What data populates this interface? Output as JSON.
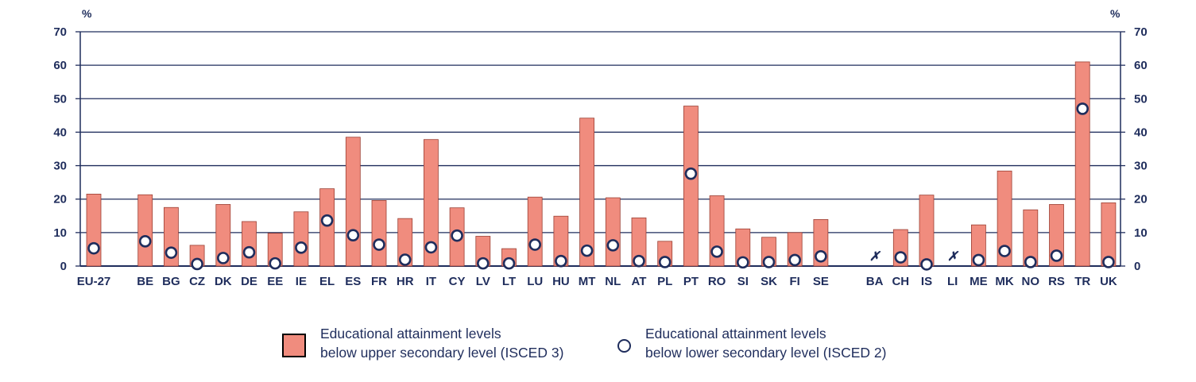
{
  "chart_data": {
    "type": "bar",
    "unit_left": "%",
    "unit_right": "%",
    "ylim": [
      0,
      70
    ],
    "yticks": [
      0,
      10,
      20,
      30,
      40,
      50,
      60,
      70
    ],
    "categories": [
      "EU-27",
      "BE",
      "BG",
      "CZ",
      "DK",
      "DE",
      "EE",
      "IE",
      "EL",
      "ES",
      "FR",
      "HR",
      "IT",
      "CY",
      "LV",
      "LT",
      "LU",
      "HU",
      "MT",
      "NL",
      "AT",
      "PL",
      "PT",
      "RO",
      "SI",
      "SK",
      "FI",
      "SE",
      "BA",
      "CH",
      "IS",
      "LI",
      "ME",
      "MK",
      "NO",
      "RS",
      "TR",
      "UK"
    ],
    "series": [
      {
        "name_lines": [
          "Educational attainment levels",
          "below upper secondary level (ISCED 3)"
        ],
        "color": "#f08c7e",
        "values": [
          21.5,
          21.3,
          17.5,
          6.2,
          18.4,
          13.3,
          9.8,
          16.2,
          23.1,
          38.5,
          19.6,
          14.2,
          37.8,
          17.4,
          8.9,
          5.2,
          20.6,
          14.9,
          44.2,
          20.4,
          14.4,
          7.4,
          47.8,
          21.0,
          11.1,
          8.6,
          10.0,
          13.9,
          null,
          10.9,
          21.2,
          null,
          12.3,
          28.4,
          16.8,
          18.4,
          61.0,
          18.9
        ]
      },
      {
        "name_lines": [
          "Educational attainment levels",
          "below lower secondary level (ISCED 2)"
        ],
        "color": "#1f2d5c",
        "values": [
          5.3,
          7.4,
          4.0,
          0.6,
          2.4,
          4.1,
          0.8,
          5.5,
          13.6,
          9.2,
          6.4,
          1.9,
          5.6,
          9.1,
          0.8,
          0.8,
          6.4,
          1.5,
          4.6,
          6.2,
          1.5,
          1.2,
          27.6,
          4.3,
          1.1,
          1.2,
          1.8,
          2.9,
          null,
          2.6,
          0.5,
          null,
          1.8,
          4.5,
          1.2,
          3.1,
          47.0,
          1.2
        ]
      }
    ],
    "missing_marker": "✗",
    "missing_categories": [
      "BA",
      "LI"
    ],
    "grid": true,
    "legend_position": "bottom"
  }
}
